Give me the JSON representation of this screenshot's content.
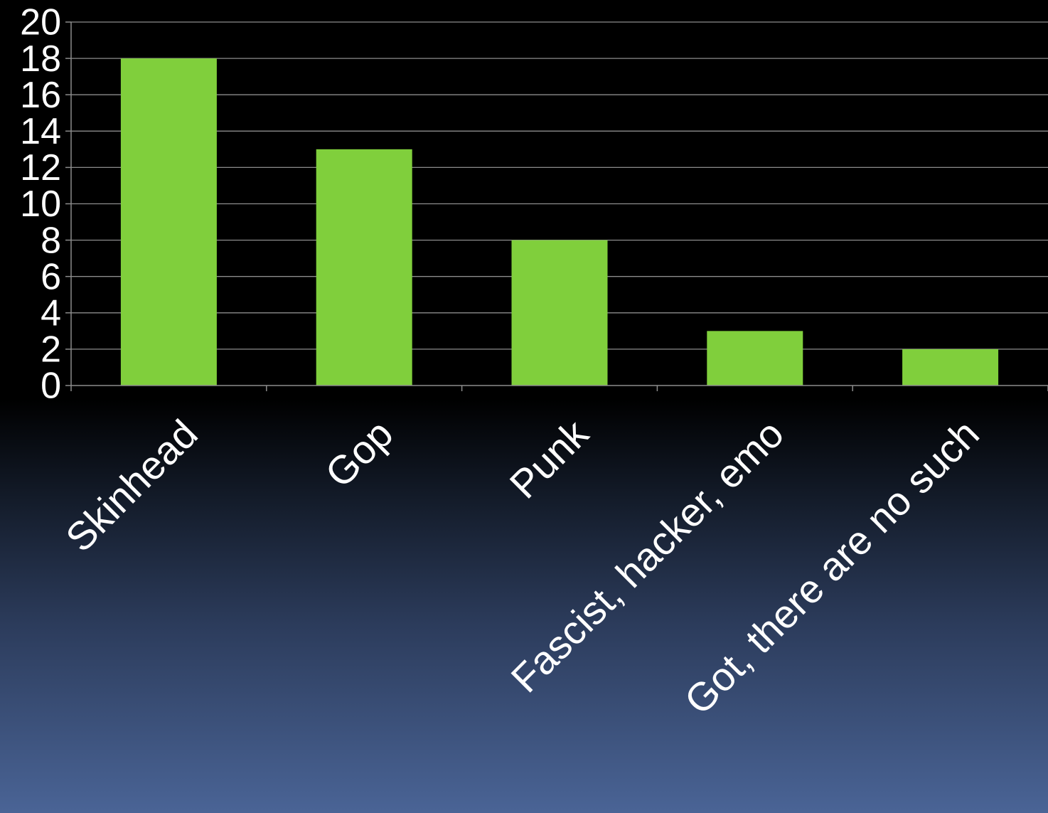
{
  "chart_data": {
    "type": "bar",
    "categories": [
      "Skinhead",
      "Gop",
      "Punk",
      "Fascist, hacker, emo",
      "Got, there are no such"
    ],
    "values": [
      18,
      13,
      8,
      3,
      2
    ],
    "y_ticks": [
      "0",
      "2",
      "4",
      "6",
      "8",
      "10",
      "12",
      "14",
      "16",
      "18",
      "20"
    ],
    "ylim": [
      0,
      20
    ],
    "grid": true,
    "legend": "none",
    "colors": {
      "bar": "#80cf3c",
      "grid": "#8c8c8c",
      "text": "#ffffff"
    }
  }
}
